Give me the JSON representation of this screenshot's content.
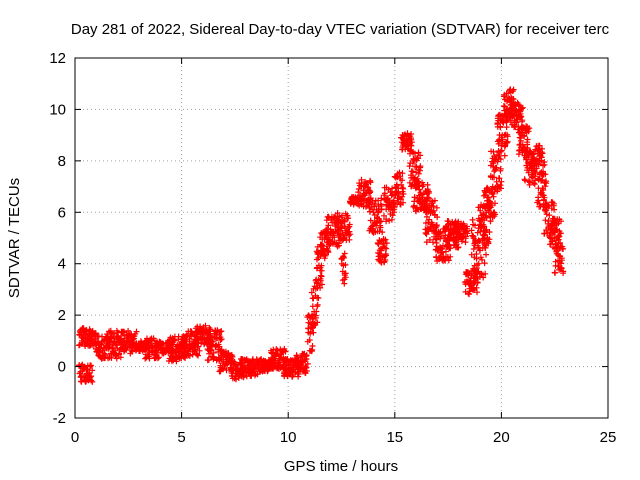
{
  "chart_data": {
    "type": "scatter",
    "title": "Day 281 of 2022, Sidereal Day-to-day VTEC variation (SDTVAR) for receiver terc",
    "xlabel": "GPS time / hours",
    "ylabel": "SDTVAR / TECUs",
    "xlim": [
      0,
      25
    ],
    "ylim": [
      -2,
      12
    ],
    "xticks": [
      0,
      5,
      10,
      15,
      20,
      25
    ],
    "yticks": [
      -2,
      0,
      2,
      4,
      6,
      8,
      10,
      12
    ],
    "grid": true,
    "marker": "+",
    "series": [
      {
        "name": "SDTVAR",
        "color": "#ff0000",
        "bands": [
          [
            0.2,
            -0.6,
            0.8,
            0.1
          ],
          [
            0.2,
            0.8,
            1.0,
            1.5
          ],
          [
            1.0,
            0.3,
            1.6,
            1.2
          ],
          [
            1.5,
            0.3,
            2.2,
            1.4
          ],
          [
            2.2,
            0.5,
            2.9,
            1.4
          ],
          [
            2.9,
            0.6,
            3.4,
            1.0
          ],
          [
            3.3,
            0.3,
            4.0,
            1.1
          ],
          [
            4.0,
            0.5,
            4.6,
            1.0
          ],
          [
            4.4,
            0.2,
            5.2,
            1.2
          ],
          [
            5.0,
            0.4,
            5.8,
            1.4
          ],
          [
            5.6,
            0.6,
            6.4,
            1.6
          ],
          [
            6.2,
            0.2,
            6.9,
            1.5
          ],
          [
            6.8,
            -0.2,
            7.4,
            0.6
          ],
          [
            7.3,
            -0.5,
            7.9,
            0.2
          ],
          [
            7.8,
            -0.4,
            8.6,
            0.3
          ],
          [
            8.6,
            -0.2,
            9.3,
            0.3
          ],
          [
            9.2,
            -0.1,
            9.9,
            0.7
          ],
          [
            9.8,
            -0.4,
            10.5,
            0.3
          ],
          [
            10.4,
            -0.3,
            10.9,
            0.5
          ],
          [
            10.9,
            0.6,
            11.2,
            2.0
          ],
          [
            11.1,
            1.6,
            11.4,
            3.6
          ],
          [
            11.3,
            3.0,
            11.6,
            4.8
          ],
          [
            11.5,
            4.2,
            11.9,
            5.4
          ],
          [
            11.8,
            4.6,
            12.4,
            5.9
          ],
          [
            12.3,
            4.9,
            12.9,
            6.0
          ],
          [
            12.5,
            3.2,
            12.7,
            4.4
          ],
          [
            12.9,
            6.3,
            13.3,
            6.6
          ],
          [
            13.3,
            6.2,
            13.9,
            7.3
          ],
          [
            13.8,
            5.2,
            14.4,
            6.6
          ],
          [
            14.2,
            4.0,
            14.6,
            5.0
          ],
          [
            14.5,
            5.6,
            15.0,
            7.0
          ],
          [
            15.0,
            6.2,
            15.4,
            7.6
          ],
          [
            15.3,
            8.4,
            15.8,
            9.1
          ],
          [
            15.7,
            7.0,
            16.2,
            8.4
          ],
          [
            15.9,
            6.0,
            16.6,
            7.2
          ],
          [
            16.4,
            4.8,
            17.0,
            6.6
          ],
          [
            16.9,
            4.1,
            17.6,
            5.4
          ],
          [
            17.4,
            4.6,
            18.0,
            5.7
          ],
          [
            17.8,
            4.8,
            18.4,
            5.6
          ],
          [
            18.3,
            2.8,
            18.9,
            3.8
          ],
          [
            18.6,
            3.4,
            19.3,
            5.8
          ],
          [
            18.9,
            4.6,
            19.5,
            6.3
          ],
          [
            19.2,
            5.8,
            19.7,
            7.0
          ],
          [
            19.5,
            6.8,
            20.0,
            8.4
          ],
          [
            19.8,
            8.2,
            20.3,
            9.8
          ],
          [
            20.1,
            9.6,
            20.6,
            10.9
          ],
          [
            20.4,
            9.2,
            21.0,
            10.3
          ],
          [
            20.8,
            8.2,
            21.3,
            9.4
          ],
          [
            21.1,
            7.0,
            21.6,
            8.4
          ],
          [
            21.4,
            7.4,
            22.0,
            8.6
          ],
          [
            21.7,
            6.2,
            22.1,
            7.6
          ],
          [
            22.0,
            5.0,
            22.5,
            6.4
          ],
          [
            22.3,
            4.6,
            22.8,
            5.8
          ],
          [
            22.5,
            3.6,
            22.9,
            4.8
          ]
        ]
      }
    ]
  }
}
